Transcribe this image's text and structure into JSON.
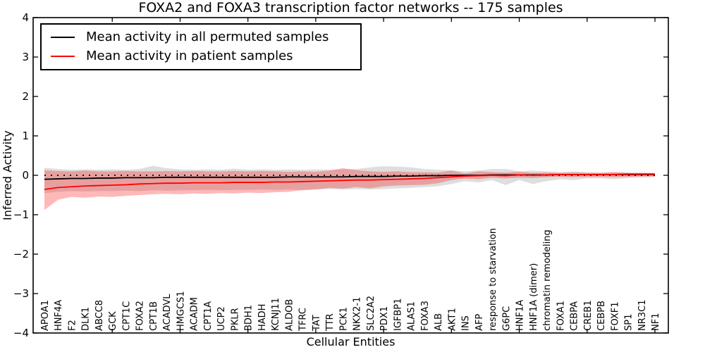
{
  "figure": {
    "title": "FOXA2 and FOXA3 transcription factor networks -- 175 samples",
    "xlabel": "Cellular Entities",
    "ylabel": "Inferred Activity"
  },
  "legend": {
    "items": [
      {
        "label": "Mean activity in all permuted samples",
        "color": "#000000"
      },
      {
        "label": "Mean activity in patient samples",
        "color": "#ff0000"
      }
    ]
  },
  "chart_data": {
    "type": "line",
    "title": "FOXA2 and FOXA3 transcription factor networks -- 175 samples",
    "xlabel": "Cellular Entities",
    "ylabel": "Inferred Activity",
    "ylim": [
      -4,
      4
    ],
    "yticks": [
      -4,
      -3,
      -2,
      -1,
      0,
      1,
      2,
      3,
      4
    ],
    "grid": false,
    "legend_position": "upper left",
    "x_tick_label_rotation": 90,
    "categories": [
      "APOA1",
      "HNF4A",
      "F2",
      "DLK1",
      "ABCC8",
      "GCK",
      "CPT1C",
      "FOXA2",
      "CPT1B",
      "ACADVL",
      "HMGCS1",
      "ACADM",
      "CPT1A",
      "UCP2",
      "PKLR",
      "BDH1",
      "HADH",
      "KCNJ11",
      "ALDOB",
      "TFRC",
      "TAT",
      "TTR",
      "PCK1",
      "NKX2-1",
      "SLC2A2",
      "PDX1",
      "IGFBP1",
      "ALAS1",
      "FOXA3",
      "ALB",
      "AKT1",
      "INS",
      "AFP",
      "response to starvation",
      "G6PC",
      "HNF1A",
      "HNF1A (dimer)",
      "chromatin remodeling",
      "FOXA1",
      "CEBPA",
      "CREB1",
      "CEBPB",
      "FOXF1",
      "SP1",
      "NR3C1",
      "NF1"
    ],
    "reference_line": {
      "y": 0,
      "style": "dotted",
      "color": "#000000"
    },
    "series": [
      {
        "name": "Mean activity in all permuted samples",
        "color": "#000000",
        "style": "solid",
        "values": [
          -0.1,
          -0.09,
          -0.08,
          -0.08,
          -0.07,
          -0.07,
          -0.06,
          -0.06,
          -0.06,
          -0.05,
          -0.05,
          -0.05,
          -0.05,
          -0.05,
          -0.05,
          -0.05,
          -0.05,
          -0.05,
          -0.04,
          -0.04,
          -0.04,
          -0.04,
          -0.04,
          -0.03,
          -0.03,
          -0.03,
          -0.02,
          -0.02,
          -0.01,
          -0.01,
          0.0,
          0.0,
          0.0,
          0.01,
          0.01,
          0.01,
          0.01,
          0.01,
          0.02,
          0.02,
          0.02,
          0.02,
          0.02,
          0.02,
          0.02,
          0.02
        ]
      },
      {
        "name": "Mean activity in patient samples",
        "color": "#ff0000",
        "style": "solid",
        "values": [
          -0.36,
          -0.31,
          -0.29,
          -0.27,
          -0.26,
          -0.25,
          -0.24,
          -0.22,
          -0.21,
          -0.2,
          -0.2,
          -0.19,
          -0.19,
          -0.19,
          -0.18,
          -0.18,
          -0.18,
          -0.17,
          -0.17,
          -0.16,
          -0.15,
          -0.14,
          -0.13,
          -0.12,
          -0.12,
          -0.11,
          -0.1,
          -0.09,
          -0.08,
          -0.06,
          -0.04,
          -0.02,
          -0.01,
          0.0,
          -0.01,
          0.01,
          0.0,
          0.01,
          0.02,
          0.02,
          0.02,
          0.02,
          0.02,
          0.03,
          0.03,
          0.03
        ]
      }
    ],
    "bands": [
      {
        "name": "Permuted samples activity range",
        "color": "#000000",
        "opacity": 0.13,
        "upper": [
          0.19,
          0.16,
          0.14,
          0.15,
          0.14,
          0.15,
          0.14,
          0.16,
          0.24,
          0.18,
          0.15,
          0.14,
          0.15,
          0.14,
          0.17,
          0.14,
          0.15,
          0.14,
          0.15,
          0.14,
          0.15,
          0.14,
          0.15,
          0.16,
          0.2,
          0.23,
          0.22,
          0.2,
          0.16,
          0.14,
          0.13,
          0.1,
          0.12,
          0.16,
          0.16,
          0.1,
          0.12,
          0.1,
          0.08,
          0.1,
          0.08,
          0.07,
          0.08,
          0.07,
          0.06,
          0.05
        ],
        "lower": [
          -0.45,
          -0.42,
          -0.4,
          -0.41,
          -0.4,
          -0.4,
          -0.39,
          -0.4,
          -0.38,
          -0.39,
          -0.38,
          -0.38,
          -0.37,
          -0.38,
          -0.37,
          -0.37,
          -0.36,
          -0.37,
          -0.36,
          -0.37,
          -0.36,
          -0.35,
          -0.36,
          -0.35,
          -0.36,
          -0.35,
          -0.33,
          -0.32,
          -0.3,
          -0.28,
          -0.22,
          -0.15,
          -0.18,
          -0.12,
          -0.25,
          -0.12,
          -0.22,
          -0.15,
          -0.1,
          -0.12,
          -0.08,
          -0.08,
          -0.1,
          -0.07,
          -0.06,
          -0.05
        ]
      },
      {
        "name": "Patient samples activity range",
        "color": "#ff0000",
        "opacity": 0.28,
        "upper": [
          0.13,
          0.11,
          0.1,
          0.12,
          0.1,
          0.1,
          0.11,
          0.1,
          0.1,
          0.11,
          0.1,
          0.11,
          0.1,
          0.1,
          0.11,
          0.1,
          0.11,
          0.1,
          0.09,
          0.1,
          0.09,
          0.12,
          0.18,
          0.13,
          0.1,
          0.09,
          0.1,
          0.08,
          0.08,
          0.07,
          0.12,
          0.05,
          0.1,
          0.08,
          0.07,
          0.09,
          0.06,
          0.07,
          0.06,
          0.07,
          0.06,
          0.06,
          0.08,
          0.06,
          0.06,
          0.06
        ],
        "lower": [
          -0.88,
          -0.62,
          -0.55,
          -0.57,
          -0.54,
          -0.55,
          -0.52,
          -0.5,
          -0.48,
          -0.47,
          -0.48,
          -0.46,
          -0.47,
          -0.45,
          -0.46,
          -0.44,
          -0.45,
          -0.43,
          -0.42,
          -0.38,
          -0.36,
          -0.32,
          -0.34,
          -0.3,
          -0.33,
          -0.28,
          -0.26,
          -0.25,
          -0.24,
          -0.2,
          -0.12,
          -0.08,
          -0.1,
          -0.06,
          -0.08,
          -0.06,
          -0.07,
          -0.05,
          -0.04,
          -0.05,
          -0.04,
          -0.04,
          -0.05,
          -0.04,
          -0.03,
          -0.03
        ]
      }
    ]
  }
}
